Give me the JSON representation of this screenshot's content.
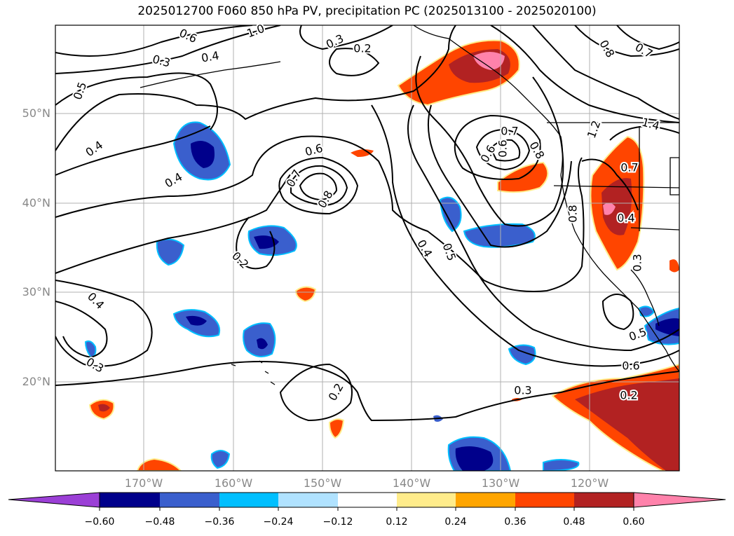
{
  "title": "2025012700 F060 850 hPa PV, precipitation PC (2025013100 - 2025020100)",
  "lat_labels": [
    "50°N",
    "40°N",
    "30°N",
    "20°N"
  ],
  "lon_labels": [
    "170°W",
    "160°W",
    "150°W",
    "140°W",
    "130°W",
    "120°W"
  ],
  "contour_labels": [
    "0.6",
    "0.3",
    "0.4",
    "0.5",
    "0.3",
    "0.2",
    "0.4",
    "0.4",
    "0.6",
    "0.7",
    "0.8",
    "0.2",
    "0.6",
    "0.5",
    "0.4",
    "0.7",
    "0.6",
    "0.8",
    "0.8",
    "0.7",
    "1.4",
    "0.8",
    "0.4",
    "0.7",
    "0.3",
    "0.4",
    "0.3",
    "0.2",
    "0.3",
    "0.5",
    "0.6",
    "0.2",
    "1.0",
    "1.2"
  ],
  "colorbar": {
    "ticks": [
      "−0.60",
      "−0.48",
      "−0.36",
      "−0.24",
      "−0.12",
      "0.12",
      "0.24",
      "0.36",
      "0.48",
      "0.60"
    ],
    "colors": [
      "#9b3fd6",
      "#00008b",
      "#3a5fcd",
      "#00bfff",
      "#b0e2ff",
      "#ffffff",
      "#ffec8b",
      "#ffa500",
      "#ff4500",
      "#b22222",
      "#ff82ab"
    ]
  },
  "colors": {
    "pos_light": "#ffec8b",
    "pos_mid": "#ff4500",
    "pos_dark": "#b22222",
    "pos_max": "#ff82ab",
    "neg_light": "#00bfff",
    "neg_mid": "#3a5fcd",
    "neg_dark": "#00008b"
  }
}
